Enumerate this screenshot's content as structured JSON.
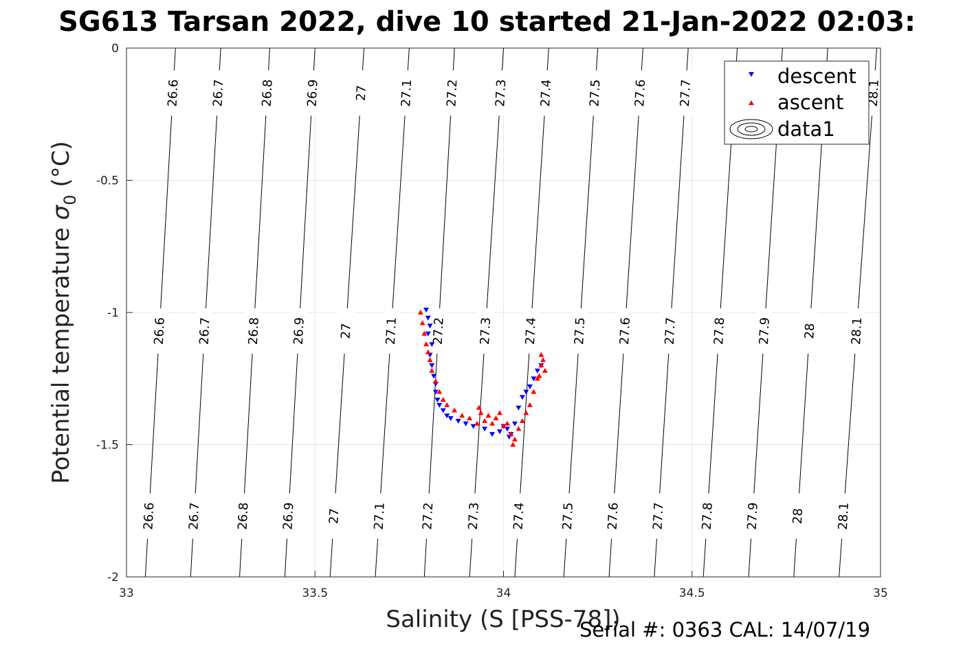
{
  "chart_data": {
    "type": "scatter",
    "title": "SG613 Tarsan 2022, dive 10 started 21-Jan-2022 02:03:",
    "xlabel": "Salinity (S [PSS-78])",
    "ylabel_main": "Potential temperature ",
    "ylabel_sym": "σ",
    "ylabel_sub": "0",
    "ylabel_unit": " (°C)",
    "xlim": [
      33,
      35
    ],
    "ylim": [
      -2,
      0
    ],
    "grid": true,
    "x_ticks": [
      33,
      33.5,
      34,
      34.5,
      35
    ],
    "x_tick_labels": [
      "33",
      "33.5",
      "34",
      "34.5",
      "35"
    ],
    "y_ticks": [
      0,
      -0.5,
      -1,
      -1.5,
      -2
    ],
    "y_tick_labels": [
      "0",
      "-0.5",
      "-1",
      "-1.5",
      "-2"
    ],
    "legend": {
      "position": "top-right",
      "entries": [
        "descent",
        "ascent",
        "data1"
      ]
    },
    "contours": {
      "levels": [
        26.6,
        26.7,
        26.8,
        26.9,
        27,
        27.1,
        27.2,
        27.3,
        27.4,
        27.5,
        27.6,
        27.7,
        27.8,
        27.9,
        28,
        28.1
      ],
      "labels": [
        "26.6",
        "26.7",
        "26.8",
        "26.9",
        "27",
        "27.1",
        "27.2",
        "27.3",
        "27.4",
        "27.5",
        "27.6",
        "27.7",
        "27.8",
        "27.9",
        "28",
        "28.1"
      ],
      "x_at_t0": [
        33.13,
        33.25,
        33.38,
        33.5,
        33.63,
        33.75,
        33.87,
        34.0,
        34.12,
        34.25,
        34.37,
        34.49,
        34.62,
        34.74,
        34.86,
        34.99
      ],
      "x_at_tm2": [
        33.05,
        33.17,
        33.3,
        33.42,
        33.54,
        33.66,
        33.79,
        33.91,
        34.03,
        34.16,
        34.28,
        34.4,
        34.53,
        34.65,
        34.77,
        34.89
      ]
    },
    "series": [
      {
        "name": "descent",
        "color": "#0000ff",
        "marker": "triangle-down",
        "x": [
          33.795,
          33.8,
          33.805,
          33.8,
          33.81,
          33.805,
          33.81,
          33.815,
          33.82,
          33.82,
          33.825,
          33.83,
          33.84,
          33.85,
          33.86,
          33.88,
          33.9,
          33.92,
          33.95,
          33.97,
          33.99,
          34.0,
          34.01,
          34.015,
          34.02,
          34.03,
          34.04,
          34.05,
          34.06,
          34.07,
          34.08,
          34.09,
          34.1
        ],
        "y": [
          -0.99,
          -1.02,
          -1.05,
          -1.08,
          -1.12,
          -1.16,
          -1.2,
          -1.24,
          -1.27,
          -1.3,
          -1.33,
          -1.35,
          -1.37,
          -1.39,
          -1.4,
          -1.41,
          -1.42,
          -1.43,
          -1.44,
          -1.46,
          -1.45,
          -1.43,
          -1.44,
          -1.47,
          -1.46,
          -1.42,
          -1.36,
          -1.32,
          -1.3,
          -1.28,
          -1.25,
          -1.22,
          -1.2
        ]
      },
      {
        "name": "ascent",
        "color": "#ff0000",
        "marker": "triangle-up",
        "x": [
          33.78,
          33.785,
          33.79,
          33.795,
          33.8,
          33.805,
          33.81,
          33.82,
          33.83,
          33.84,
          33.85,
          33.87,
          33.89,
          33.91,
          33.93,
          33.935,
          33.94,
          33.95,
          33.96,
          33.97,
          33.98,
          33.99,
          34.0,
          34.01,
          34.02,
          34.025,
          34.03,
          34.04,
          34.05,
          34.06,
          34.07,
          34.08,
          34.09,
          34.1,
          34.11,
          34.105,
          34.1,
          34.095
        ],
        "y": [
          -1.0,
          -1.04,
          -1.08,
          -1.12,
          -1.15,
          -1.18,
          -1.22,
          -1.26,
          -1.3,
          -1.33,
          -1.35,
          -1.37,
          -1.39,
          -1.4,
          -1.42,
          -1.36,
          -1.38,
          -1.41,
          -1.39,
          -1.42,
          -1.4,
          -1.38,
          -1.43,
          -1.42,
          -1.46,
          -1.5,
          -1.48,
          -1.44,
          -1.41,
          -1.38,
          -1.35,
          -1.3,
          -1.25,
          -1.2,
          -1.22,
          -1.18,
          -1.16,
          -1.24
        ]
      }
    ]
  },
  "footer": {
    "serial": "Serial #: 0363  CAL: 14/07/19"
  }
}
